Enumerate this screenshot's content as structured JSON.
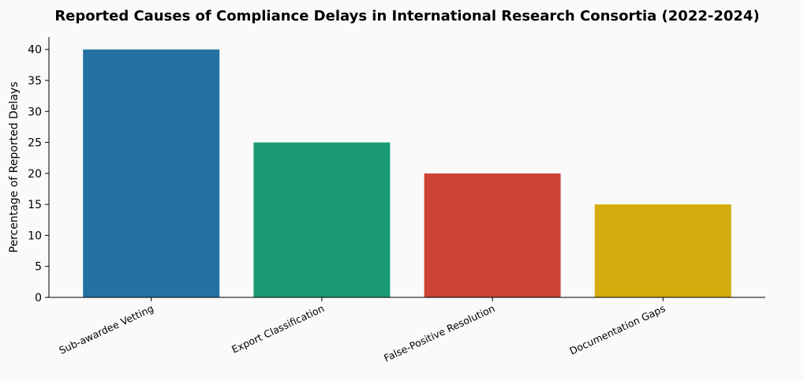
{
  "chart_data": {
    "type": "bar",
    "title": "Reported Causes of Compliance Delays in International Research Consortia (2022-2024)",
    "y_label": "Percentage of Reported Delays",
    "categories": [
      "Sub-awardee Vetting",
      "Export Classification",
      "False-Positive Resolution",
      "Documentation Gaps"
    ],
    "values": [
      40,
      25,
      20,
      15
    ],
    "colors": [
      "#2471a3",
      "#1a9a74",
      "#cb4335",
      "#d4ac0d"
    ],
    "ylim": [
      0,
      42
    ],
    "yticks": [
      0,
      5,
      10,
      15,
      20,
      25,
      30,
      35,
      40
    ],
    "grid": false
  }
}
